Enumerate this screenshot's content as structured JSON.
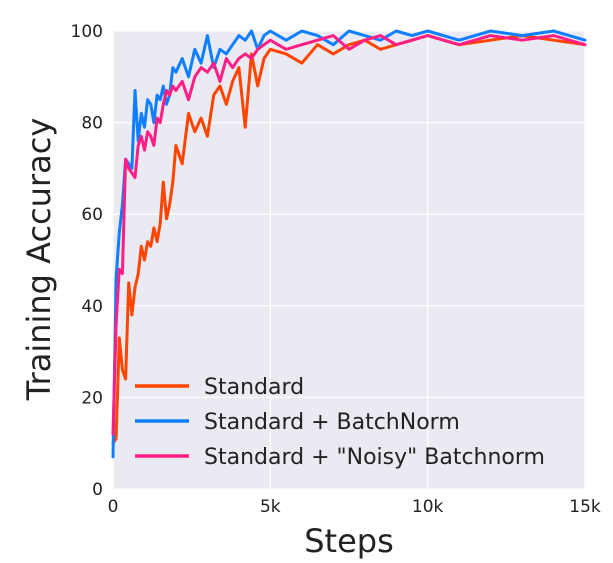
{
  "chart_data": {
    "type": "line",
    "title": "",
    "xlabel": "Steps",
    "ylabel": "Training Accuracy",
    "xlim": [
      0,
      15000
    ],
    "ylim": [
      0,
      100
    ],
    "x_ticks": [
      0,
      5000,
      10000,
      15000
    ],
    "x_tick_labels": [
      "0",
      "5k",
      "10k",
      "15k"
    ],
    "y_ticks": [
      0,
      20,
      40,
      60,
      80,
      100
    ],
    "y_tick_labels": [
      "0",
      "20",
      "40",
      "60",
      "80",
      "100"
    ],
    "grid": true,
    "legend_position": "lower-right",
    "series": [
      {
        "name": "Standard",
        "color": "#ff4500",
        "x": [
          0,
          100,
          200,
          300,
          400,
          500,
          600,
          700,
          800,
          900,
          1000,
          1100,
          1200,
          1300,
          1400,
          1500,
          1600,
          1700,
          1800,
          1900,
          2000,
          2200,
          2400,
          2600,
          2800,
          3000,
          3200,
          3400,
          3600,
          3800,
          4000,
          4200,
          4400,
          4600,
          4800,
          5000,
          5500,
          6000,
          6500,
          7000,
          7500,
          8000,
          8500,
          9000,
          9500,
          10000,
          11000,
          12000,
          13000,
          14000,
          15000
        ],
        "values": [
          10,
          11,
          33,
          26,
          24,
          45,
          38,
          44,
          47,
          53,
          50,
          54,
          53,
          57,
          54,
          58,
          67,
          59,
          62,
          67,
          75,
          71,
          82,
          78,
          81,
          77,
          86,
          88,
          84,
          89,
          92,
          79,
          95,
          88,
          94,
          96,
          95,
          93,
          97,
          95,
          97,
          98,
          96,
          97,
          98,
          99,
          97,
          98,
          99,
          98,
          97
        ]
      },
      {
        "name": "Standard + BatchNorm",
        "color": "#0f7fff",
        "x": [
          0,
          100,
          200,
          300,
          400,
          500,
          600,
          700,
          800,
          900,
          1000,
          1100,
          1200,
          1300,
          1400,
          1500,
          1600,
          1700,
          1800,
          1900,
          2000,
          2200,
          2400,
          2600,
          2800,
          3000,
          3200,
          3400,
          3600,
          3800,
          4000,
          4200,
          4400,
          4600,
          4800,
          5000,
          5500,
          6000,
          6500,
          7000,
          7500,
          8000,
          8500,
          9000,
          9500,
          10000,
          11000,
          12000,
          13000,
          14000,
          15000
        ],
        "values": [
          7,
          46,
          56,
          62,
          72,
          71,
          70,
          87,
          76,
          82,
          79,
          85,
          84,
          80,
          86,
          85,
          88,
          84,
          86,
          92,
          91,
          94,
          90,
          96,
          93,
          99,
          92,
          96,
          95,
          97,
          99,
          98,
          100,
          96,
          99,
          100,
          98,
          100,
          99,
          97,
          100,
          99,
          98,
          100,
          99,
          100,
          98,
          100,
          99,
          100,
          98
        ]
      },
      {
        "name": "Standard + \"Noisy\" Batchnorm",
        "color": "#ff1f85",
        "x": [
          0,
          100,
          200,
          300,
          400,
          500,
          600,
          700,
          800,
          900,
          1000,
          1100,
          1200,
          1300,
          1400,
          1500,
          1600,
          1700,
          1800,
          1900,
          2000,
          2200,
          2400,
          2600,
          2800,
          3000,
          3200,
          3400,
          3600,
          3800,
          4000,
          4200,
          4400,
          4600,
          4800,
          5000,
          5500,
          6000,
          6500,
          7000,
          7500,
          8000,
          8500,
          9000,
          9500,
          10000,
          11000,
          12000,
          13000,
          14000,
          15000
        ],
        "values": [
          12,
          36,
          48,
          47,
          72,
          70,
          69,
          68,
          75,
          77,
          74,
          78,
          77,
          75,
          81,
          80,
          84,
          87,
          86,
          88,
          87,
          89,
          85,
          90,
          92,
          91,
          93,
          89,
          94,
          92,
          94,
          95,
          94,
          96,
          97,
          98,
          96,
          97,
          98,
          99,
          96,
          98,
          99,
          97,
          98,
          99,
          97,
          99,
          98,
          99,
          97
        ]
      }
    ]
  }
}
